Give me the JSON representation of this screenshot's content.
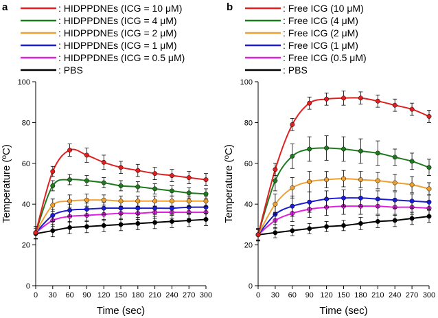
{
  "chart_data": [
    {
      "type": "line",
      "panel_label": "a",
      "xlabel": "Time (sec)",
      "ylabel": "Temperature (oC)",
      "ylabel_base": "Temperature (",
      "ylabel_sup": "o",
      "ylabel_end": "C)",
      "xlim": [
        0,
        300
      ],
      "ylim": [
        0,
        100
      ],
      "xticks": [
        0,
        30,
        60,
        90,
        120,
        150,
        180,
        210,
        240,
        270,
        300
      ],
      "yticks": [
        0,
        20,
        40,
        60,
        80,
        100
      ],
      "x": [
        0,
        30,
        60,
        90,
        120,
        150,
        180,
        210,
        240,
        270,
        300
      ],
      "series": [
        {
          "name": ": HIDPPDNEs (ICG = 10 μM)",
          "color": "#e02020",
          "values": [
            26,
            56,
            66.5,
            64,
            60.5,
            58,
            56.5,
            55,
            54,
            53,
            52
          ],
          "errors": [
            3,
            2.5,
            3,
            3.5,
            3.5,
            3,
            3,
            3,
            3,
            3,
            3
          ]
        },
        {
          "name": ": HIDPPDNEs (ICG = 4 μM)",
          "color": "#1f7a1f",
          "values": [
            26,
            49,
            52,
            51.5,
            50.5,
            49,
            48.5,
            47.5,
            46.5,
            45.5,
            45
          ],
          "errors": [
            3,
            2.5,
            2.5,
            2.5,
            2.5,
            2.5,
            2.5,
            2.5,
            2.5,
            2.5,
            2.5
          ]
        },
        {
          "name": ": HIDPPDNEs (ICG = 2 μM)",
          "color": "#f0a030",
          "values": [
            26,
            39.5,
            41.5,
            42,
            42,
            41.5,
            41.5,
            41.5,
            41.5,
            41.5,
            41.5
          ],
          "errors": [
            3,
            3,
            3,
            3,
            2.5,
            2.5,
            2.5,
            2.5,
            2.5,
            2.5,
            2.5
          ]
        },
        {
          "name": ": HIDPPDNEs (ICG = 1 μM)",
          "color": "#1c1cd0",
          "values": [
            26,
            34.5,
            37,
            37.5,
            38,
            38,
            38,
            38,
            38,
            38.5,
            38.5
          ],
          "errors": [
            3,
            3,
            3,
            3,
            3,
            3,
            3,
            3,
            3,
            3,
            3
          ]
        },
        {
          "name": ": HIDPPDNEs (ICG = 0.5 μM)",
          "color": "#e020e0",
          "values": [
            26,
            32,
            34,
            34.5,
            35,
            35.5,
            35.5,
            36,
            36,
            36,
            36
          ],
          "errors": [
            3,
            3,
            3,
            3,
            3,
            3,
            3,
            3,
            3,
            3,
            3
          ]
        },
        {
          "name": ": PBS",
          "color": "#000000",
          "values": [
            25.5,
            27,
            28.5,
            29,
            29.5,
            30,
            30.5,
            31,
            31.5,
            32,
            32.5
          ],
          "errors": [
            2.5,
            3,
            3,
            3,
            3,
            3,
            3,
            3,
            3,
            3,
            3
          ]
        }
      ]
    },
    {
      "type": "line",
      "panel_label": "b",
      "xlabel": "Time (sec)",
      "ylabel": "Temperature (oC)",
      "ylabel_base": "Temperature (",
      "ylabel_sup": "o",
      "ylabel_end": "C)",
      "xlim": [
        0,
        300
      ],
      "ylim": [
        0,
        100
      ],
      "xticks": [
        0,
        30,
        60,
        90,
        120,
        150,
        180,
        210,
        240,
        270,
        300
      ],
      "yticks": [
        0,
        20,
        40,
        60,
        80,
        100
      ],
      "x": [
        0,
        30,
        60,
        90,
        120,
        150,
        180,
        210,
        240,
        270,
        300
      ],
      "series": [
        {
          "name": ": Free ICG (10 μM)",
          "color": "#e02020",
          "values": [
            25,
            57,
            79,
            89.5,
            91.5,
            92,
            92,
            90.5,
            88.5,
            86.5,
            83
          ],
          "errors": [
            3,
            3,
            3,
            3,
            3,
            3.5,
            3,
            3,
            3,
            3,
            3
          ]
        },
        {
          "name": ": Free ICG (4 μM)",
          "color": "#1f7a1f",
          "values": [
            25,
            51.5,
            63.5,
            67,
            67.5,
            67,
            66,
            65,
            63,
            61,
            58
          ],
          "errors": [
            3,
            5,
            6,
            6,
            6,
            6,
            6,
            6,
            4,
            4,
            4
          ]
        },
        {
          "name": ": Free ICG (2 μM)",
          "color": "#f0a030",
          "values": [
            25,
            40,
            48,
            51,
            52,
            52.5,
            52,
            51.5,
            50.5,
            49.5,
            47.5
          ],
          "errors": [
            3,
            5,
            5,
            5,
            4,
            4,
            4,
            4,
            4,
            4,
            3
          ]
        },
        {
          "name": ": Free ICG (1 μM)",
          "color": "#1c1cd0",
          "values": [
            25,
            35,
            39,
            41,
            42.5,
            43,
            43,
            42.5,
            42,
            41.5,
            41
          ],
          "errors": [
            3,
            5,
            5,
            5,
            4,
            4,
            4,
            4,
            4,
            3.5,
            3.5
          ]
        },
        {
          "name": ": Free ICG (0.5 μM)",
          "color": "#e020e0",
          "values": [
            25,
            32,
            35.5,
            37.5,
            38.5,
            39,
            39,
            39,
            38.5,
            38.5,
            38
          ],
          "errors": [
            3,
            4,
            4,
            4,
            4,
            4,
            4,
            4,
            4,
            3.5,
            3.5
          ]
        },
        {
          "name": ": PBS",
          "color": "#000000",
          "values": [
            25,
            26,
            27,
            28,
            29,
            29.5,
            30.5,
            31.5,
            32,
            33,
            34
          ],
          "errors": [
            2.5,
            2.5,
            2.5,
            2.5,
            2.5,
            2.5,
            3,
            3,
            3,
            3,
            3
          ]
        }
      ]
    }
  ]
}
